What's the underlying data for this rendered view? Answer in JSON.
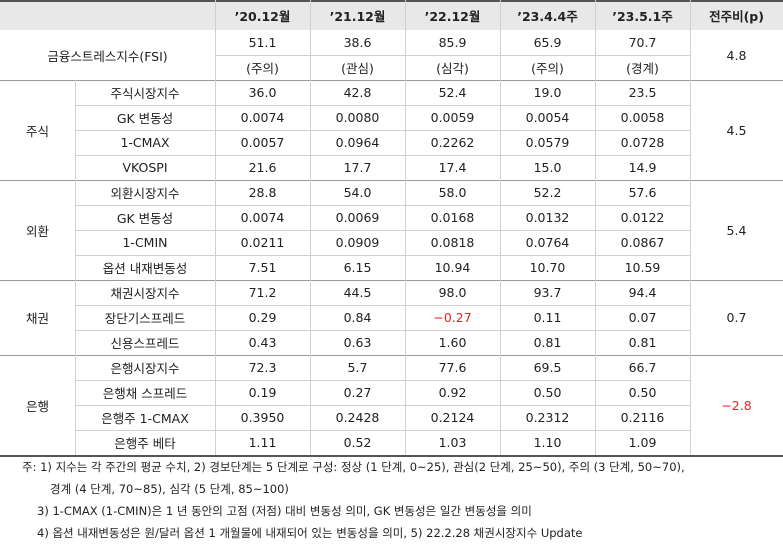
{
  "header": {
    "columns": [
      "’20.12월",
      "’21.12월",
      "’22.12월",
      "’23.4.4주",
      "’23.5.1주",
      "전주비(p)"
    ]
  },
  "fsi": {
    "label": "금융스트레스지수(FSI)",
    "values": [
      "51.1",
      "38.6",
      "85.9",
      "65.9",
      "70.7"
    ],
    "levels": [
      "(주의)",
      "(관심)",
      "(심각)",
      "(주의)",
      "(경계)"
    ],
    "change": "4.8"
  },
  "sections": [
    {
      "name": "주식",
      "change": "4.5",
      "rows": [
        {
          "label": "주식시장지수",
          "values": [
            "36.0",
            "42.8",
            "52.4",
            "19.0",
            "23.5"
          ]
        },
        {
          "label": "GK 변동성",
          "values": [
            "0.0074",
            "0.0080",
            "0.0059",
            "0.0054",
            "0.0058"
          ]
        },
        {
          "label": "1-CMAX",
          "values": [
            "0.0057",
            "0.0964",
            "0.2262",
            "0.0579",
            "0.0728"
          ]
        },
        {
          "label": "VKOSPI",
          "values": [
            "21.6",
            "17.7",
            "17.4",
            "15.0",
            "14.9"
          ]
        }
      ]
    },
    {
      "name": "외환",
      "change": "5.4",
      "rows": [
        {
          "label": "외환시장지수",
          "values": [
            "28.8",
            "54.0",
            "58.0",
            "52.2",
            "57.6"
          ]
        },
        {
          "label": "GK 변동성",
          "values": [
            "0.0074",
            "0.0069",
            "0.0168",
            "0.0132",
            "0.0122"
          ]
        },
        {
          "label": "1-CMIN",
          "values": [
            "0.0211",
            "0.0909",
            "0.0818",
            "0.0764",
            "0.0867"
          ]
        },
        {
          "label": "옵션 내재변동성",
          "values": [
            "7.51",
            "6.15",
            "10.94",
            "10.70",
            "10.59"
          ]
        }
      ]
    },
    {
      "name": "채권",
      "change": "0.7",
      "rows": [
        {
          "label": "채권시장지수",
          "values": [
            "71.2",
            "44.5",
            "98.0",
            "93.7",
            "94.4"
          ]
        },
        {
          "label": "장단기스프레드",
          "values": [
            "0.29",
            "0.84",
            "−0.27",
            "0.11",
            "0.07"
          ]
        },
        {
          "label": "신용스프레드",
          "values": [
            "0.43",
            "0.63",
            "1.60",
            "0.81",
            "0.81"
          ]
        }
      ]
    },
    {
      "name": "은행",
      "change": "−2.8",
      "rows": [
        {
          "label": "은행시장지수",
          "values": [
            "72.3",
            "5.7",
            "77.6",
            "69.5",
            "66.7"
          ]
        },
        {
          "label": "은행채 스프레드",
          "values": [
            "0.19",
            "0.27",
            "0.92",
            "0.50",
            "0.50"
          ]
        },
        {
          "label": "은행주 1-CMAX",
          "values": [
            "0.3950",
            "0.2428",
            "0.2124",
            "0.2312",
            "0.2116"
          ]
        },
        {
          "label": "은행주 베타",
          "values": [
            "1.11",
            "0.52",
            "1.03",
            "1.10",
            "1.09"
          ]
        }
      ]
    }
  ],
  "notes": [
    "주: 1) 지수는 각 주간의 평균 수치, 2) 경보단계는 5 단계로 구성: 정상 (1 단계, 0~25), 관심(2 단계, 25~50), 주의 (3 단계, 50~70),",
    "경계 (4 단계, 70~85), 심각 (5 단계, 85~100)",
    "3) 1-CMAX (1-CMIN)은 1 년 동안의 고점 (저점) 대비 변동성 의미, GK 변동성은 일간 변동성을 의미",
    "4) 옵션 내재변동성은 원/달러 옵션 1 개월물에 내재되어 있는 변동성을 의미, 5) 22.2.28 채권시장지수 Update"
  ]
}
